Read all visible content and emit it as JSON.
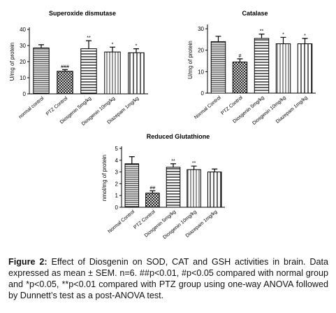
{
  "chart_data": [
    {
      "type": "bar",
      "title": "Superoxide dismutase",
      "y_label": "U/mg of protein",
      "categories": [
        "normal control",
        "PTZ Control",
        "Diosgenin 5mg/kg",
        "Diosgenin 10mg/kg",
        "Diazepam 1mg/kg"
      ],
      "values": [
        28.5,
        14,
        28,
        26,
        25.5
      ],
      "errors": [
        2,
        1,
        5,
        3,
        2.5
      ],
      "annotations": [
        null,
        "###",
        "**",
        "*",
        "*"
      ],
      "color": "#000000",
      "ylim": [
        0,
        40
      ],
      "yticks": [
        0,
        10,
        20,
        30,
        40
      ]
    },
    {
      "type": "bar",
      "title": "Catalase",
      "y_label": "U/mg of protein",
      "categories": [
        "Normal Control",
        "PTZ Control",
        "Diosgenin 5mg/kg",
        "Diosgenin 10mg/kg",
        "Diazepam 1mg/kg"
      ],
      "values": [
        24,
        14.5,
        25.5,
        23,
        23
      ],
      "errors": [
        2.5,
        1.5,
        2,
        3,
        2.5
      ],
      "annotations": [
        null,
        "#",
        "**",
        "*",
        "*"
      ],
      "color": "#000000",
      "ylim": [
        0,
        31
      ],
      "yticks": [
        0,
        10,
        20,
        30
      ]
    },
    {
      "type": "bar",
      "title": "Reduced Glutathione",
      "y_label": "nmol/mg of protein",
      "categories": [
        "Normal Control",
        "PTZ Control",
        "Diosgenin 5mg/kg",
        "Diosgenin 10mg/kg",
        "Diazepam 1mg/kg"
      ],
      "values": [
        3.7,
        1.2,
        3.4,
        3.2,
        3.0
      ],
      "errors": [
        0.6,
        0.2,
        0.3,
        0.3,
        0.25
      ],
      "annotations": [
        null,
        "##",
        "**",
        "**",
        null
      ],
      "color": "#000000",
      "ylim": [
        0,
        5
      ],
      "yticks": [
        0,
        1,
        2,
        3,
        4,
        5
      ]
    }
  ],
  "caption": {
    "label": "Figure 2:",
    "text": " Effect of Diosgenin on SOD, CAT and GSH activities in brain. Data expressed as mean ± SEM. n=6. ##p<0.01, #p<0.05 compared with normal group and *p<0.05, **p<0.01 compared with PTZ group using one-way ANOVA followed by Dunnett’s test as a post-ANOVA test."
  }
}
